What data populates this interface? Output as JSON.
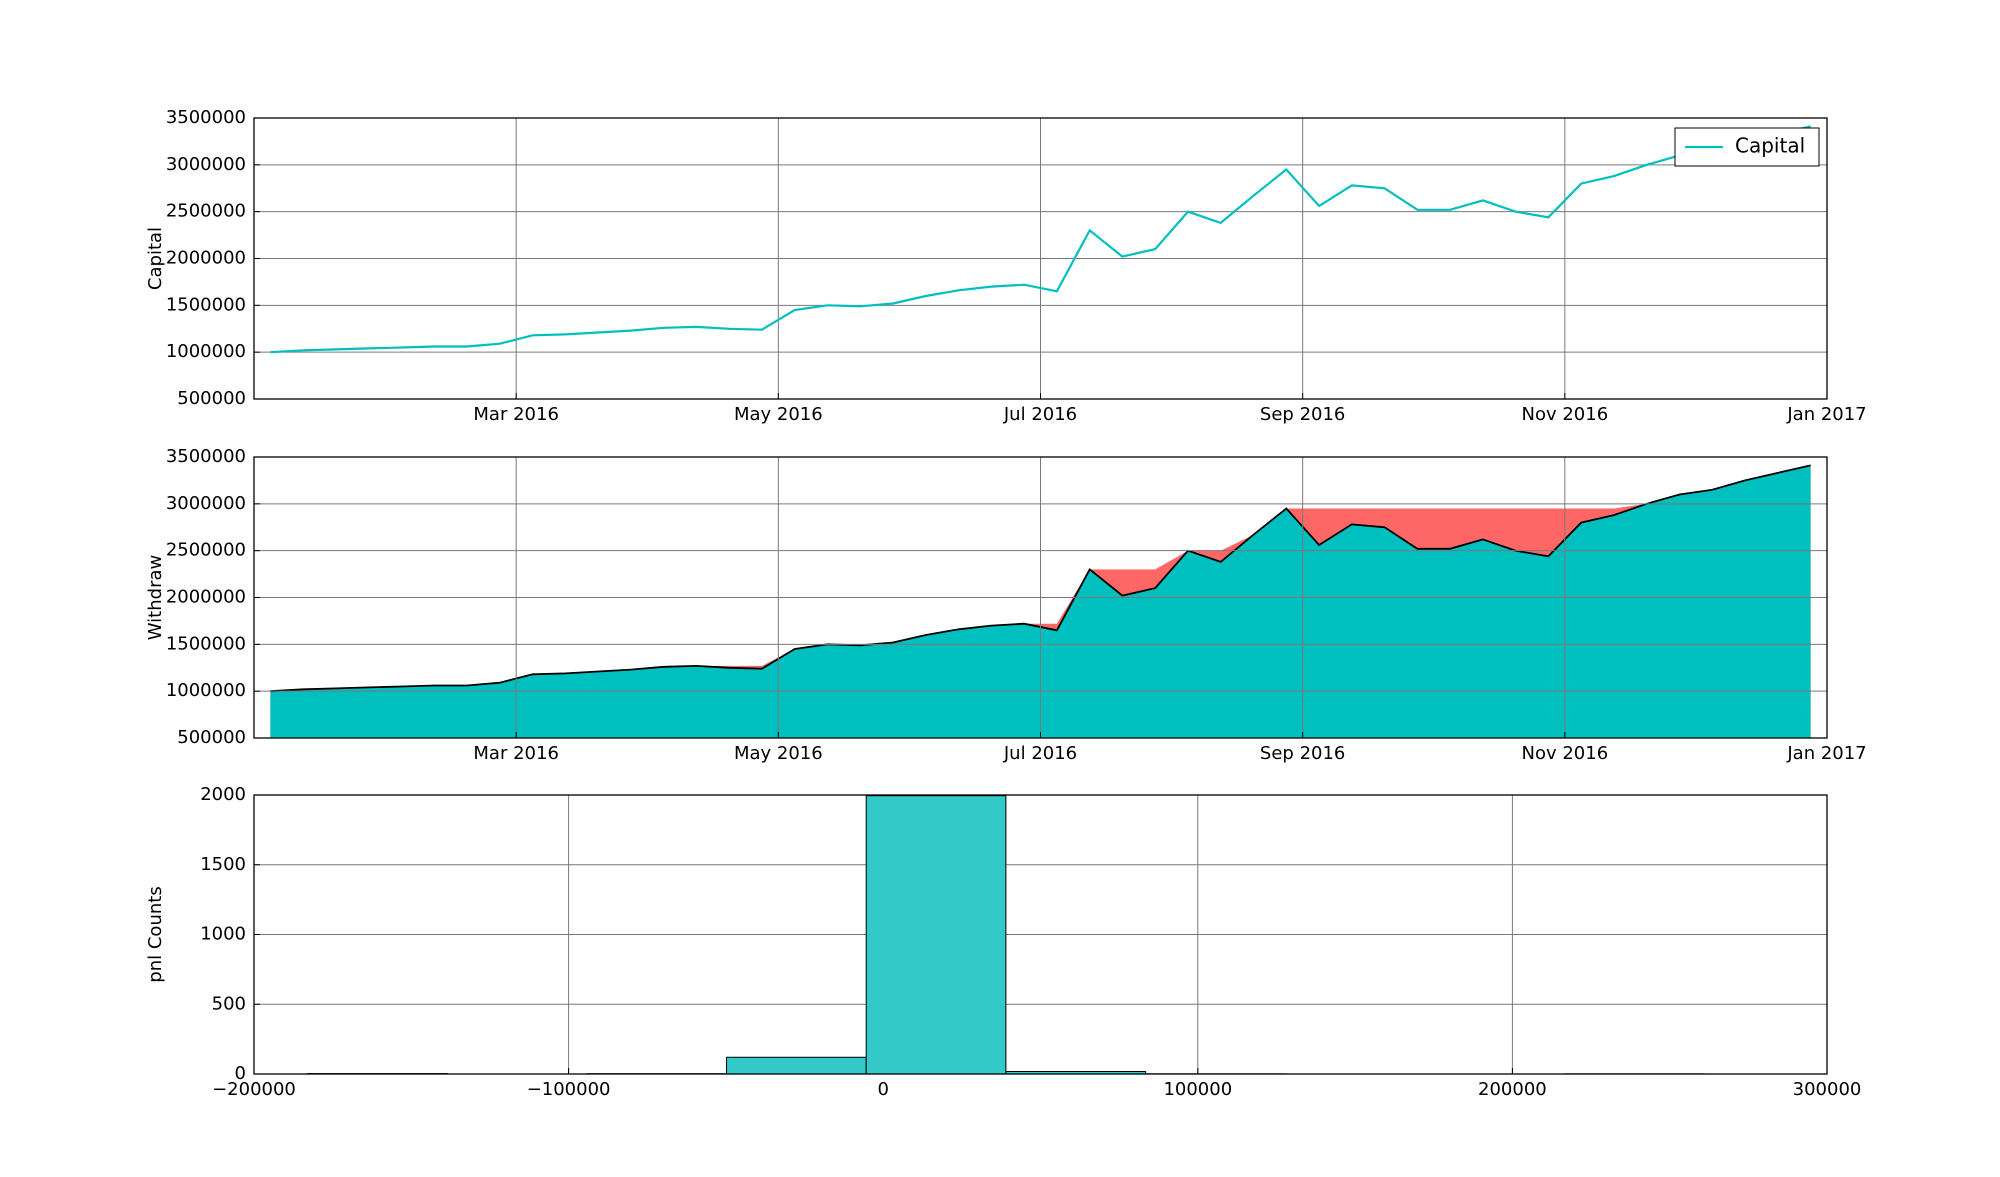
{
  "chart_data": [
    {
      "type": "line",
      "y_label": "Capital",
      "x": [
        "2016-01",
        "2016-01",
        "2016-01",
        "2016-01",
        "2016-02",
        "2016-02",
        "2016-02",
        "2016-02",
        "2016-03",
        "2016-03",
        "2016-03",
        "2016-03",
        "2016-04",
        "2016-04",
        "2016-04",
        "2016-04",
        "2016-05",
        "2016-05",
        "2016-05",
        "2016-05",
        "2016-06",
        "2016-06",
        "2016-06",
        "2016-06",
        "2016-07",
        "2016-07",
        "2016-07",
        "2016-07",
        "2016-08",
        "2016-08",
        "2016-08",
        "2016-08",
        "2016-09",
        "2016-09",
        "2016-09",
        "2016-09",
        "2016-10",
        "2016-10",
        "2016-10",
        "2016-10",
        "2016-11",
        "2016-11",
        "2016-11",
        "2016-11",
        "2016-12",
        "2016-12",
        "2016-12",
        "2016-12"
      ],
      "series": [
        {
          "name": "Capital",
          "color": "#00bfbf",
          "values": [
            1000000,
            1020000,
            1030000,
            1040000,
            1050000,
            1060000,
            1060000,
            1090000,
            1180000,
            1190000,
            1210000,
            1230000,
            1260000,
            1270000,
            1250000,
            1240000,
            1450000,
            1500000,
            1490000,
            1520000,
            1600000,
            1660000,
            1700000,
            1720000,
            1650000,
            2300000,
            2020000,
            2100000,
            2500000,
            2380000,
            2670000,
            2950000,
            2560000,
            2780000,
            2750000,
            2520000,
            2520000,
            2620000,
            2500000,
            2440000,
            2800000,
            2880000,
            3000000,
            3100000,
            3150000,
            3250000,
            3330000,
            3410000
          ]
        }
      ],
      "xlim": [
        "2016-01",
        "2017-01"
      ],
      "xticks": [
        {
          "value": "2016-03",
          "label": "Mar 2016"
        },
        {
          "value": "2016-05",
          "label": "May 2016"
        },
        {
          "value": "2016-07",
          "label": "Jul 2016"
        },
        {
          "value": "2016-09",
          "label": "Sep 2016"
        },
        {
          "value": "2016-11",
          "label": "Nov 2016"
        },
        {
          "value": "2017-01",
          "label": "Jan 2017"
        }
      ],
      "ylim": [
        500000,
        3500000
      ],
      "yticks": [
        500000,
        1000000,
        1500000,
        2000000,
        2500000,
        3000000,
        3500000
      ],
      "grid": true,
      "legend": "upper right"
    },
    {
      "type": "area",
      "y_label": "Withdraw",
      "x": [
        "2016-01",
        "2016-01",
        "2016-01",
        "2016-01",
        "2016-02",
        "2016-02",
        "2016-02",
        "2016-02",
        "2016-03",
        "2016-03",
        "2016-03",
        "2016-03",
        "2016-04",
        "2016-04",
        "2016-04",
        "2016-04",
        "2016-05",
        "2016-05",
        "2016-05",
        "2016-05",
        "2016-06",
        "2016-06",
        "2016-06",
        "2016-06",
        "2016-07",
        "2016-07",
        "2016-07",
        "2016-07",
        "2016-08",
        "2016-08",
        "2016-08",
        "2016-08",
        "2016-09",
        "2016-09",
        "2016-09",
        "2016-09",
        "2016-10",
        "2016-10",
        "2016-10",
        "2016-10",
        "2016-11",
        "2016-11",
        "2016-11",
        "2016-11",
        "2016-12",
        "2016-12",
        "2016-12",
        "2016-12"
      ],
      "series": [
        {
          "color": "#ff6666",
          "values": [
            1000000,
            1020000,
            1030000,
            1040000,
            1050000,
            1060000,
            1060000,
            1090000,
            1180000,
            1190000,
            1210000,
            1230000,
            1260000,
            1270000,
            1270000,
            1270000,
            1450000,
            1500000,
            1500000,
            1520000,
            1600000,
            1660000,
            1700000,
            1720000,
            1720000,
            2300000,
            2300000,
            2300000,
            2500000,
            2500000,
            2670000,
            2950000,
            2950000,
            2950000,
            2950000,
            2950000,
            2950000,
            2950000,
            2950000,
            2950000,
            2950000,
            2950000,
            3000000,
            3100000,
            3150000,
            3250000,
            3330000,
            3410000
          ]
        },
        {
          "color": "#00bfbf",
          "line_color": "#000000",
          "values": [
            1000000,
            1020000,
            1030000,
            1040000,
            1050000,
            1060000,
            1060000,
            1090000,
            1180000,
            1190000,
            1210000,
            1230000,
            1260000,
            1270000,
            1250000,
            1240000,
            1450000,
            1500000,
            1490000,
            1520000,
            1600000,
            1660000,
            1700000,
            1720000,
            1650000,
            2300000,
            2020000,
            2100000,
            2500000,
            2380000,
            2670000,
            2950000,
            2560000,
            2780000,
            2750000,
            2520000,
            2520000,
            2620000,
            2500000,
            2440000,
            2800000,
            2880000,
            3000000,
            3100000,
            3150000,
            3250000,
            3330000,
            3410000
          ]
        }
      ],
      "xlim": [
        "2016-01",
        "2017-01"
      ],
      "xticks": [
        {
          "value": "2016-03",
          "label": "Mar 2016"
        },
        {
          "value": "2016-05",
          "label": "May 2016"
        },
        {
          "value": "2016-07",
          "label": "Jul 2016"
        },
        {
          "value": "2016-09",
          "label": "Sep 2016"
        },
        {
          "value": "2016-11",
          "label": "Nov 2016"
        },
        {
          "value": "2017-01",
          "label": "Jan 2017"
        }
      ],
      "ylim": [
        500000,
        3500000
      ],
      "yticks": [
        500000,
        1000000,
        1500000,
        2000000,
        2500000,
        3000000,
        3500000
      ],
      "grid": true
    },
    {
      "type": "histogram",
      "y_label": "pnl Counts",
      "color": "#33c9c9",
      "bins": [
        -183000,
        -138600,
        -94200,
        -49800,
        -5400,
        39000,
        83400,
        127800,
        172200,
        216600,
        261000
      ],
      "values": [
        3,
        0,
        2,
        120,
        1995,
        18,
        1,
        0,
        0,
        1
      ],
      "xlim": [
        -200000,
        300000
      ],
      "xticks": [
        {
          "value": -200000,
          "label": "−200000"
        },
        {
          "value": -100000,
          "label": "−100000"
        },
        0,
        100000,
        200000,
        300000
      ],
      "ylim": [
        0,
        2000
      ],
      "yticks": [
        0,
        500,
        1000,
        1500,
        2000
      ],
      "grid": true
    }
  ]
}
